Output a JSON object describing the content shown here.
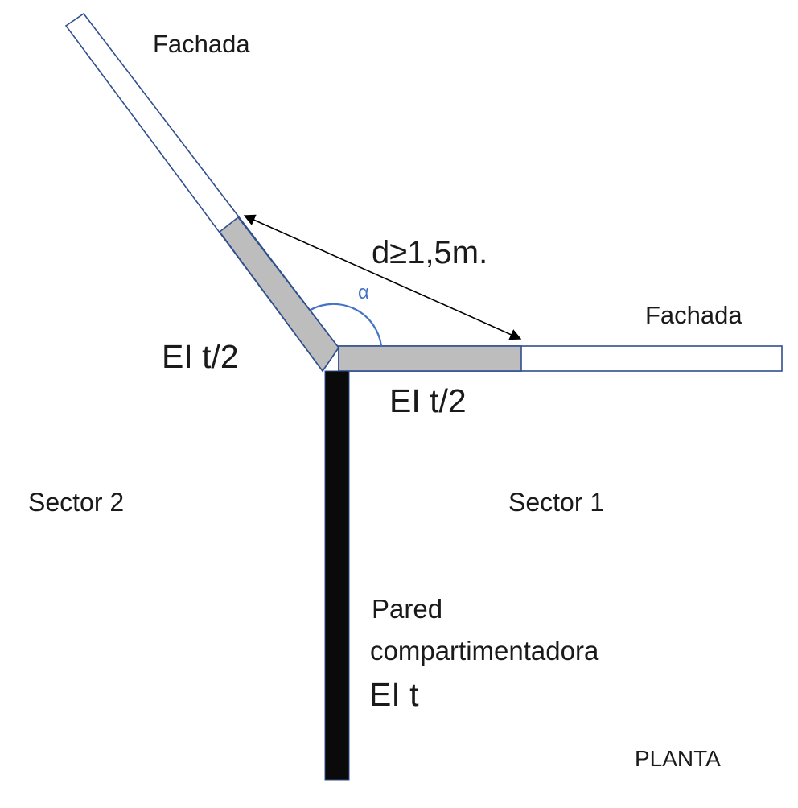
{
  "labels": {
    "facade_upper": "Fachada",
    "facade_right": "Fachada",
    "distance": "d≥1,5m.",
    "angle": "α",
    "ei_left": "EI t/2",
    "ei_bottom": "EI t/2",
    "sector_2": "Sector 2",
    "sector_1": "Sector 1",
    "wall_line1": "Pared",
    "wall_line2": "compartimentadora",
    "wall_rating": "EI t",
    "view": "PLANTA"
  },
  "colors": {
    "facade_outline": "#2f4f8f",
    "protected_band": "#bdbdbd",
    "wall_fill": "#0a0a0a",
    "angle_arc": "#4472c4",
    "dimension_line": "#000000",
    "text": "#1a1a1a"
  }
}
